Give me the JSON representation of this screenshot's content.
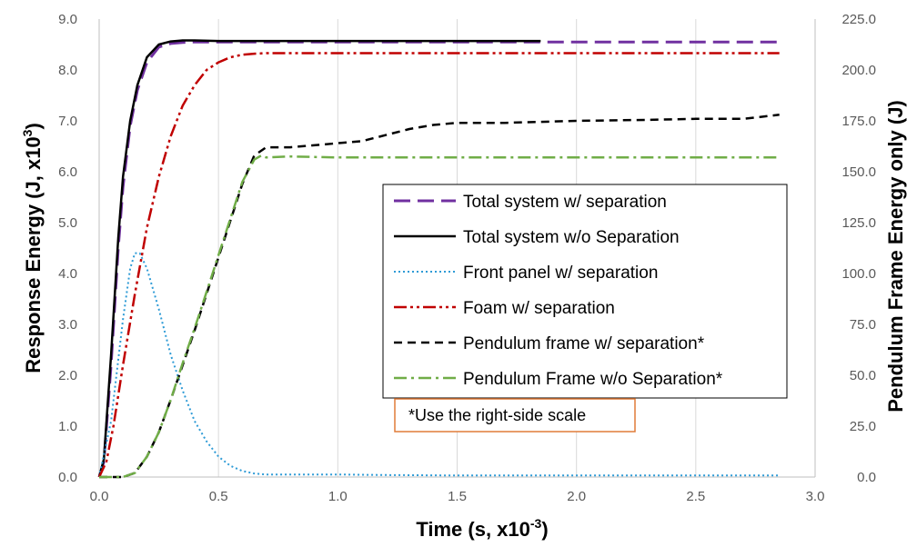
{
  "chart_data": {
    "type": "line",
    "xlabel_main": "Time (s, x10",
    "xlabel_sup": "-3",
    "xlabel_end": ")",
    "ylabel_main": "Response Energy (J, x10",
    "ylabel_sup": "3",
    "ylabel_end": ")",
    "y2label": "Pendulum Frame Energy only (J)",
    "xlim": [
      0,
      3.0
    ],
    "ylim": [
      0,
      9.0
    ],
    "y2lim": [
      0,
      225.0
    ],
    "x_ticks": [
      "0.0",
      "0.5",
      "1.0",
      "1.5",
      "2.0",
      "2.5",
      "3.0"
    ],
    "y_ticks": [
      "0.0",
      "1.0",
      "2.0",
      "3.0",
      "4.0",
      "5.0",
      "6.0",
      "7.0",
      "8.0",
      "9.0"
    ],
    "y2_ticks": [
      "0.0",
      "25.0",
      "50.0",
      "75.0",
      "100.0",
      "125.0",
      "150.0",
      "175.0",
      "200.0",
      "225.0"
    ],
    "grid": "vertical",
    "legend_position": "center-right",
    "note": "*Use the right-side scale",
    "note_color": "#E07B39",
    "series": [
      {
        "name": "Total system w/ separation",
        "axis": "left",
        "color": "#7030A0",
        "dash": "dash-long",
        "width": 3,
        "x": [
          0,
          0.02,
          0.05,
          0.08,
          0.1,
          0.13,
          0.16,
          0.2,
          0.25,
          0.3,
          0.35,
          0.4,
          0.5,
          1.0,
          1.5,
          2.0,
          2.5,
          2.85
        ],
        "y": [
          0,
          0.3,
          2.2,
          4.5,
          5.7,
          6.9,
          7.6,
          8.15,
          8.45,
          8.52,
          8.54,
          8.55,
          8.55,
          8.55,
          8.55,
          8.55,
          8.55,
          8.55
        ]
      },
      {
        "name": "Total system w/o Separation",
        "axis": "left",
        "color": "#000000",
        "dash": "solid",
        "width": 2.5,
        "x": [
          0,
          0.02,
          0.05,
          0.08,
          0.1,
          0.13,
          0.16,
          0.2,
          0.25,
          0.3,
          0.35,
          0.4,
          0.5,
          1.0,
          1.5,
          1.85
        ],
        "y": [
          0,
          0.35,
          2.4,
          4.7,
          5.9,
          7.0,
          7.7,
          8.25,
          8.5,
          8.56,
          8.58,
          8.58,
          8.57,
          8.57,
          8.57,
          8.57
        ]
      },
      {
        "name": "Front panel w/ separation",
        "axis": "left",
        "color": "#2E9BD6",
        "dash": "dot",
        "width": 2,
        "x": [
          0,
          0.05,
          0.1,
          0.13,
          0.15,
          0.17,
          0.2,
          0.25,
          0.3,
          0.35,
          0.4,
          0.45,
          0.5,
          0.55,
          0.6,
          0.65,
          0.7,
          0.8,
          1.0,
          1.2,
          1.5,
          2.0,
          2.5,
          2.85
        ],
        "y": [
          0,
          1.1,
          3.1,
          4.1,
          4.4,
          4.4,
          4.1,
          3.3,
          2.4,
          1.7,
          1.1,
          0.7,
          0.4,
          0.22,
          0.12,
          0.07,
          0.05,
          0.05,
          0.05,
          0.04,
          0.03,
          0.03,
          0.03,
          0.03
        ]
      },
      {
        "name": "Foam w/ separation",
        "axis": "left",
        "color": "#C00000",
        "dash": "dash-dot-dot",
        "width": 2.5,
        "x": [
          0,
          0.03,
          0.06,
          0.1,
          0.15,
          0.2,
          0.25,
          0.3,
          0.35,
          0.4,
          0.45,
          0.5,
          0.55,
          0.6,
          0.65,
          0.7,
          1.0,
          1.5,
          2.0,
          2.5,
          2.85
        ],
        "y": [
          0,
          0.3,
          1.0,
          2.2,
          3.6,
          4.9,
          5.9,
          6.7,
          7.3,
          7.7,
          8.0,
          8.15,
          8.25,
          8.3,
          8.32,
          8.33,
          8.33,
          8.33,
          8.33,
          8.33,
          8.33
        ]
      },
      {
        "name": "Pendulum frame w/ separation*",
        "axis": "right",
        "color": "#000000",
        "dash": "dash-short",
        "width": 2.5,
        "x": [
          0,
          0.05,
          0.1,
          0.15,
          0.2,
          0.25,
          0.3,
          0.35,
          0.4,
          0.45,
          0.5,
          0.55,
          0.6,
          0.65,
          0.7,
          0.8,
          0.9,
          1.0,
          1.1,
          1.2,
          1.3,
          1.4,
          1.5,
          1.7,
          2.0,
          2.3,
          2.5,
          2.7,
          2.85
        ],
        "y": [
          0,
          0,
          0,
          2,
          10,
          22,
          38,
          55,
          72,
          90,
          108,
          126,
          144,
          158,
          162,
          162,
          163,
          164,
          165,
          168,
          171,
          173,
          174,
          174,
          175,
          175.5,
          176,
          176,
          178
        ]
      },
      {
        "name": "Pendulum Frame w/o Separation*",
        "axis": "right",
        "color": "#70AD47",
        "dash": "dash-dot",
        "width": 2.5,
        "x": [
          0,
          0.05,
          0.1,
          0.15,
          0.2,
          0.25,
          0.3,
          0.35,
          0.4,
          0.45,
          0.5,
          0.55,
          0.6,
          0.65,
          0.68,
          0.7,
          0.8,
          1.0,
          1.5,
          2.0,
          2.5,
          2.85
        ],
        "y": [
          0,
          0,
          0,
          2,
          10,
          22,
          38,
          56,
          73,
          91,
          109,
          127,
          145,
          156,
          158,
          157,
          157.5,
          157,
          157,
          157,
          157,
          157
        ]
      }
    ]
  }
}
